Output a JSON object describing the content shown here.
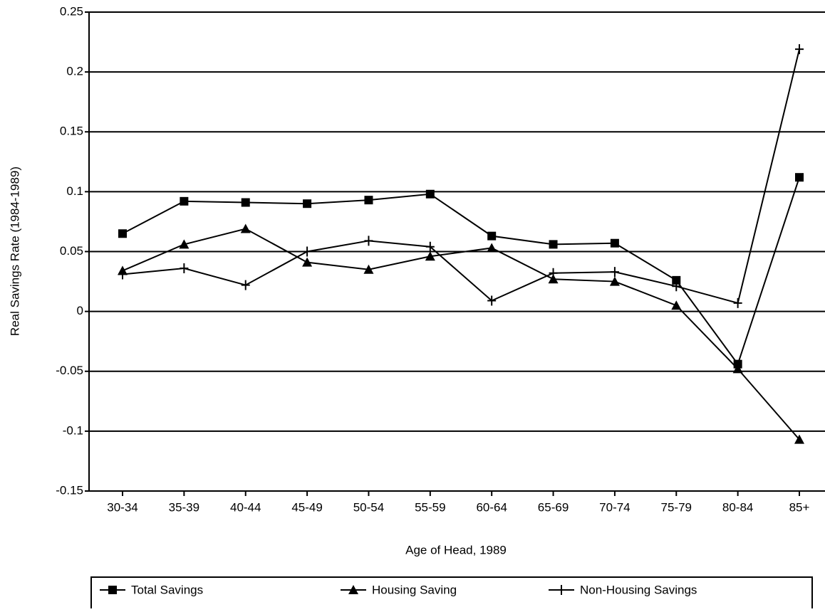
{
  "chart_data": {
    "type": "line",
    "x_label": "Age of Head, 1989",
    "y_label": "Real Savings Rate (1984-1989)",
    "categories": [
      "30-34",
      "35-39",
      "40-44",
      "45-49",
      "50-54",
      "55-59",
      "60-64",
      "65-69",
      "70-74",
      "75-79",
      "80-84",
      "85+"
    ],
    "series": [
      {
        "name": "Total Savings",
        "color": "#000000",
        "marker": "square",
        "values": [
          0.065,
          0.092,
          0.091,
          0.09,
          0.093,
          0.098,
          0.063,
          0.056,
          0.057,
          0.026,
          -0.044,
          0.112
        ]
      },
      {
        "name": "Housing Saving",
        "color": "#000000",
        "marker": "triangle",
        "values": [
          0.034,
          0.056,
          0.069,
          0.041,
          0.035,
          0.046,
          0.053,
          0.027,
          0.025,
          0.005,
          -0.048,
          -0.107
        ]
      },
      {
        "name": "Non-Housing Savings",
        "color": "#000000",
        "marker": "plus",
        "values": [
          0.031,
          0.036,
          0.022,
          0.05,
          0.059,
          0.054,
          0.009,
          0.032,
          0.033,
          0.021,
          0.007,
          0.219
        ]
      }
    ],
    "ylim": [
      -0.15,
      0.25
    ],
    "yticks": [
      0.25,
      0.2,
      0.15,
      0.1,
      0.05,
      0,
      -0.05,
      -0.1,
      -0.15
    ],
    "grid": true,
    "legend": "bottom"
  }
}
